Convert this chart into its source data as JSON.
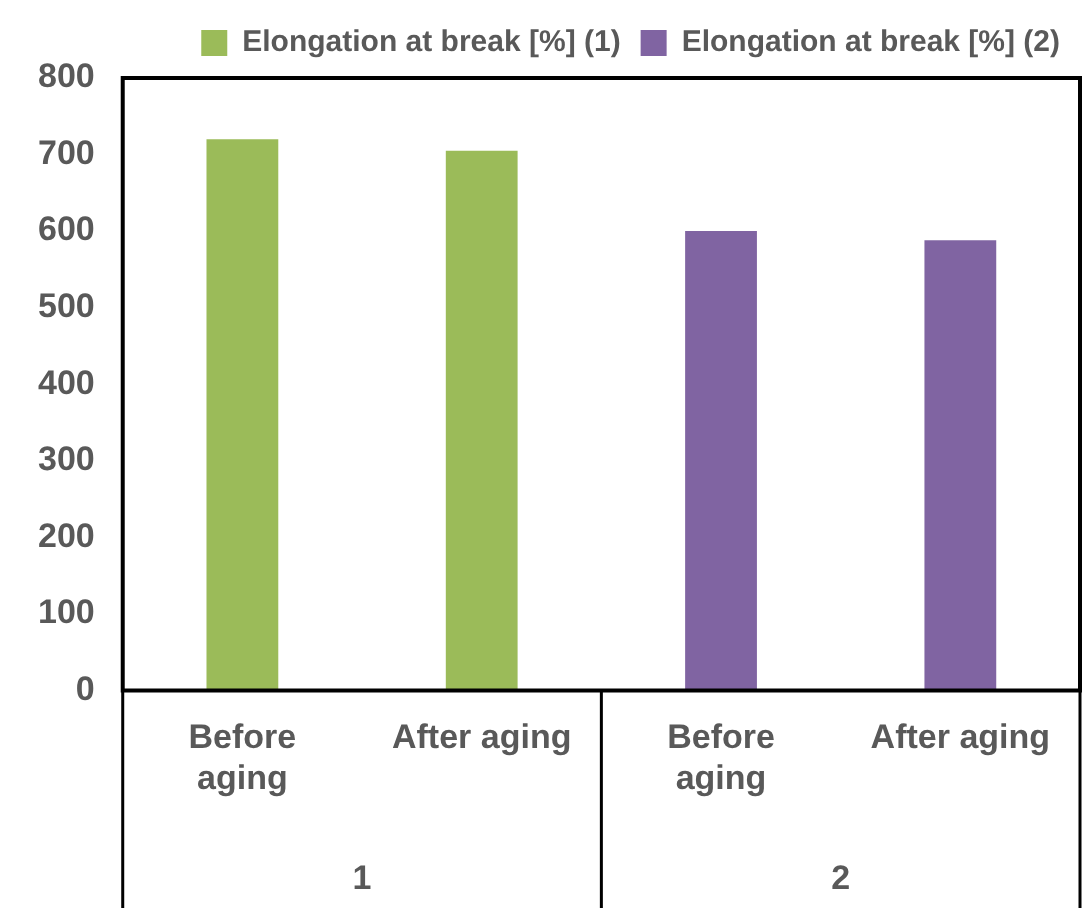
{
  "chart_data": {
    "type": "bar",
    "categories": [
      "Before aging",
      "After aging",
      "Before aging",
      "After aging"
    ],
    "series": [
      {
        "name": "Elongation at break [%] (1)",
        "color": "#9bbb59",
        "values": [
          720,
          705,
          null,
          null
        ]
      },
      {
        "name": "Elongation at break [%] (2)",
        "color": "#8064a2",
        "values": [
          null,
          null,
          600,
          588
        ]
      }
    ],
    "ylim": [
      0,
      800
    ],
    "yticks": [
      0,
      100,
      200,
      300,
      400,
      500,
      600,
      700,
      800
    ],
    "grid": false,
    "legend": "top right",
    "annotations": [
      "1",
      "2"
    ]
  }
}
